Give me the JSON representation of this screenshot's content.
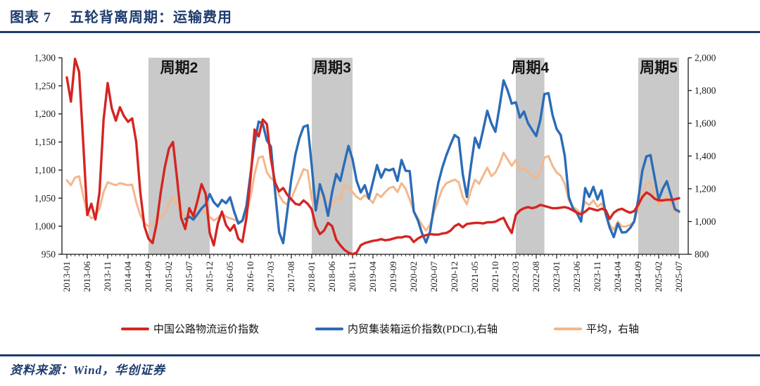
{
  "figure": {
    "label": "图表 7",
    "title": "五轮背离周期：运输费用"
  },
  "source": {
    "text": "资料来源：Wind，华创证券"
  },
  "colors": {
    "accent_navy": "#1e3c6e",
    "axis": "#1a1a1a",
    "band_gray": "#c9c9c9",
    "band_label": "#141414"
  },
  "chart_data": {
    "type": "line",
    "title": "图表 7 五轮背离周期：运输费用",
    "grid": false,
    "legend_position": "bottom",
    "x_start": "2013-01",
    "x_months_total": 151,
    "x_tick_every_months": 5,
    "x_tick_labels": [
      "2013-01",
      "2013-06",
      "2013-11",
      "2014-04",
      "2014-09",
      "2015-02",
      "2015-07",
      "2015-12",
      "2016-05",
      "2016-10",
      "2017-03",
      "2017-08",
      "2018-01",
      "2018-06",
      "2018-11",
      "2019-04",
      "2019-09",
      "2020-02",
      "2020-07",
      "2020-12",
      "2021-05",
      "2021-10",
      "2022-03",
      "2022-08",
      "2023-01",
      "2023-06",
      "2023-11",
      "2024-04",
      "2024-09",
      "2025-02",
      "2025-07"
    ],
    "left_axis": {
      "min": 950,
      "max": 1300,
      "tick_values": [
        950,
        1000,
        1050,
        1100,
        1150,
        1200,
        1250,
        1300
      ],
      "tick_labels": [
        "950",
        "1,000",
        "1,050",
        "1,100",
        "1,150",
        "1,200",
        "1,250",
        "1,300"
      ]
    },
    "right_axis": {
      "min": 800,
      "max": 2000,
      "tick_values": [
        800,
        1000,
        1200,
        1400,
        1600,
        1800,
        2000
      ],
      "tick_labels": [
        "800",
        "1,000",
        "1,200",
        "1,400",
        "1,600",
        "1,800",
        "2,000"
      ]
    },
    "band_fill": "#c9c9c9",
    "bands": [
      {
        "label": "周期2",
        "start": "2014-09",
        "end": "2015-12"
      },
      {
        "label": "周期3",
        "start": "2018-01",
        "end": "2018-11"
      },
      {
        "label": "周期4",
        "start": "2022-03",
        "end": "2022-10"
      },
      {
        "label": "周期5",
        "start": "2024-09",
        "end": "2025-07"
      }
    ],
    "series": [
      {
        "name": "中国公路物流运价指数",
        "axis": "left",
        "color": "#d42522",
        "values": [
          1265,
          1222,
          1298,
          1275,
          1150,
          1020,
          1040,
          1012,
          1060,
          1190,
          1255,
          1210,
          1188,
          1212,
          1196,
          1186,
          1192,
          1150,
          1060,
          1000,
          978,
          970,
          1005,
          1060,
          1105,
          1138,
          1150,
          1085,
          1015,
          995,
          1032,
          1018,
          1045,
          1075,
          1058,
          988,
          966,
          1005,
          1026,
          1002,
          992,
          1002,
          978,
          972,
          1015,
          1085,
          1172,
          1160,
          1190,
          1182,
          1120,
          1078,
          1062,
          1068,
          1056,
          1048,
          1040,
          1038,
          1046,
          1040,
          1030,
          1000,
          986,
          992,
          1006,
          1000,
          976,
          966,
          958,
          953,
          950,
          953,
          966,
          970,
          972,
          974,
          975,
          977,
          975,
          976,
          978,
          980,
          980,
          982,
          981,
          972,
          978,
          982,
          984,
          986,
          985,
          985,
          987,
          988,
          992,
          1000,
          1004,
          998,
          1004,
          1005,
          1006,
          1006,
          1005,
          1007,
          1007,
          1008,
          1012,
          1015,
          1000,
          988,
          1020,
          1028,
          1032,
          1034,
          1032,
          1034,
          1038,
          1036,
          1034,
          1032,
          1032,
          1033,
          1034,
          1032,
          1028,
          1024,
          1021,
          1026,
          1032,
          1030,
          1028,
          1031,
          1029,
          1013,
          1024,
          1029,
          1031,
          1027,
          1024,
          1027,
          1038,
          1052,
          1060,
          1056,
          1049,
          1046,
          1046,
          1047,
          1047,
          1048,
          1050
        ]
      },
      {
        "name": "内贸集装箱运价指数(PDCI),右轴",
        "axis": "right",
        "color": "#2b6cb7",
        "values": [
          null,
          null,
          null,
          null,
          null,
          null,
          null,
          null,
          null,
          null,
          null,
          null,
          null,
          null,
          null,
          null,
          null,
          null,
          null,
          null,
          null,
          null,
          null,
          null,
          null,
          null,
          null,
          null,
          null,
          1015,
          1030,
          1012,
          1045,
          1080,
          1105,
          1168,
          1118,
          1092,
          1132,
          1112,
          1148,
          1060,
          988,
          1005,
          1095,
          1290,
          1480,
          1610,
          1598,
          1495,
          1458,
          1190,
          935,
          868,
          1060,
          1260,
          1410,
          1510,
          1578,
          1588,
          1340,
          1068,
          1228,
          1150,
          1035,
          1180,
          1290,
          1248,
          1358,
          1462,
          1380,
          1248,
          1178,
          1222,
          1140,
          1242,
          1345,
          1268,
          1320,
          1312,
          1322,
          1248,
          1376,
          1310,
          1308,
          1062,
          1008,
          930,
          872,
          940,
          1100,
          1235,
          1330,
          1406,
          1470,
          1528,
          1510,
          1290,
          1150,
          1340,
          1512,
          1450,
          1560,
          1676,
          1600,
          1548,
          1700,
          1862,
          1800,
          1720,
          1728,
          1635,
          1672,
          1600,
          1560,
          1522,
          1620,
          1778,
          1784,
          1650,
          1565,
          1528,
          1400,
          1148,
          1080,
          1050,
          1000,
          1204,
          1150,
          1212,
          1135,
          1190,
          1050,
          963,
          905,
          988,
          933,
          935,
          960,
          1000,
          1135,
          1310,
          1398,
          1405,
          1270,
          1135,
          1200,
          1246,
          1160,
          1075,
          1062
        ]
      },
      {
        "name": "平均，右轴",
        "axis": "right",
        "color": "#f4b78c",
        "values": [
          1252,
          1222,
          1268,
          1276,
          1160,
          1052,
          1020,
          1032,
          1080,
          1180,
          1240,
          1230,
          1222,
          1235,
          1228,
          1222,
          1226,
          1118,
          1040,
          990,
          970,
          985,
          1006,
          1028,
          1050,
          1108,
          1148,
          1100,
          1062,
          1032,
          1028,
          1022,
          1050,
          1075,
          1052,
          1028,
          1006,
          1022,
          1049,
          1030,
          1019,
          1012,
          1000,
          1002,
          1045,
          1150,
          1290,
          1390,
          1398,
          1300,
          1264,
          1248,
          1160,
          1120,
          1105,
          1140,
          1200,
          1260,
          1320,
          1310,
          1135,
          1075,
          1160,
          1161,
          1062,
          1100,
          1140,
          1130,
          1222,
          1213,
          1180,
          1150,
          1135,
          1161,
          1140,
          1114,
          1170,
          1150,
          1180,
          1204,
          1213,
          1180,
          1234,
          1200,
          1135,
          1062,
          1020,
          980,
          945,
          980,
          1060,
          1130,
          1200,
          1234,
          1245,
          1256,
          1240,
          1150,
          1105,
          1190,
          1256,
          1230,
          1280,
          1329,
          1277,
          1300,
          1350,
          1420,
          1380,
          1340,
          1376,
          1310,
          1330,
          1300,
          1280,
          1265,
          1310,
          1390,
          1400,
          1340,
          1300,
          1280,
          1230,
          1130,
          1090,
          1070,
          1050,
          1120,
          1100,
          1130,
          1090,
          1110,
          1050,
          980,
          950,
          1000,
          970,
          970,
          980,
          1000,
          1080,
          1180,
          1230,
          1240,
          1160,
          1100,
          1130,
          1150,
          1110,
          1060,
          1055
        ]
      }
    ]
  }
}
